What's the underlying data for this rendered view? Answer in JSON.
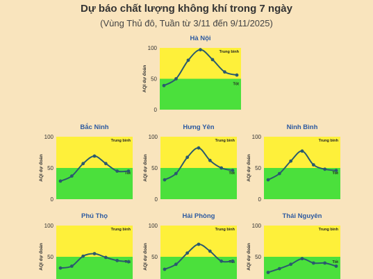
{
  "header": {
    "title": "Dự báo chất lượng không khí trong 7 ngày",
    "subtitle": "(Vùng Thủ đô, Tuần từ 3/11 đến 9/11/2025)"
  },
  "colors": {
    "moderate": "#fef03a",
    "good": "#4be03c",
    "line": "#2a5a6e",
    "title": "#2d5aa0"
  },
  "chart_data": [
    {
      "type": "line",
      "title": "Hà Nội",
      "ylabel": "AQI dự đoán",
      "ylim": [
        0,
        100
      ],
      "yticks": [
        0,
        50,
        100
      ],
      "bands": [
        "Trung bình",
        "Tốt"
      ],
      "values": [
        39,
        50,
        80,
        97,
        81,
        61,
        56
      ]
    },
    {
      "type": "line",
      "title": "Bắc Ninh",
      "ylabel": "AQI dự đoán",
      "ylim": [
        0,
        100
      ],
      "yticks": [
        0,
        50,
        100
      ],
      "bands": [
        "Trung bình",
        "Tốt"
      ],
      "values": [
        29,
        37,
        57,
        69,
        57,
        45,
        45
      ]
    },
    {
      "type": "line",
      "title": "Hưng Yên",
      "ylabel": "AQI dự đoán",
      "ylim": [
        0,
        100
      ],
      "yticks": [
        0,
        50,
        100
      ],
      "bands": [
        "Trung bình",
        "Tốt"
      ],
      "values": [
        31,
        41,
        67,
        82,
        62,
        50,
        46
      ]
    },
    {
      "type": "line",
      "title": "Ninh Bình",
      "ylabel": "AQI dự đoán",
      "ylim": [
        0,
        100
      ],
      "yticks": [
        0,
        50,
        100
      ],
      "bands": [
        "Trung bình",
        "Tốt"
      ],
      "values": [
        31,
        41,
        61,
        77,
        55,
        48,
        46
      ]
    },
    {
      "type": "line",
      "title": "Phú Thọ",
      "ylabel": "AQI dự đoán",
      "ylim": [
        0,
        100
      ],
      "yticks": [
        50,
        100
      ],
      "bands": [
        "Trung bình",
        "Tốt"
      ],
      "values": [
        32,
        35,
        51,
        55,
        49,
        44,
        42
      ]
    },
    {
      "type": "line",
      "title": "Hải Phòng",
      "ylabel": "AQI dự đoán",
      "ylim": [
        0,
        100
      ],
      "yticks": [
        50,
        100
      ],
      "bands": [
        "Trung bình",
        "Tốt"
      ],
      "values": [
        30,
        38,
        56,
        70,
        59,
        43,
        43
      ]
    },
    {
      "type": "line",
      "title": "Thái Nguyên",
      "ylabel": "AQI dự đoán",
      "ylim": [
        0,
        100
      ],
      "yticks": [
        50,
        100
      ],
      "bands": [
        "Trung bình",
        "Tốt"
      ],
      "values": [
        25,
        31,
        38,
        47,
        40,
        40,
        35
      ]
    }
  ]
}
